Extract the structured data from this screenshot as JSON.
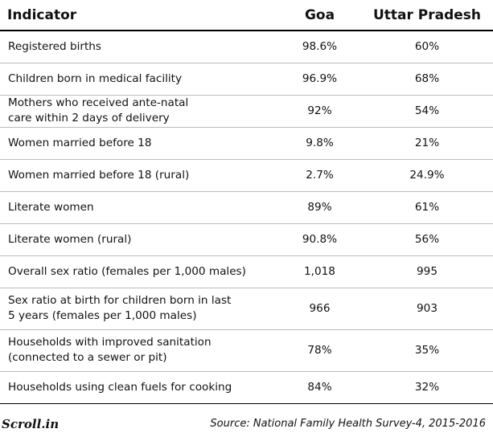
{
  "chart_data": {
    "type": "table",
    "columns": [
      "Indicator",
      "Goa",
      "Uttar Pradesh"
    ],
    "rows": [
      [
        "Registered births",
        "98.6%",
        "60%"
      ],
      [
        "Children born in medical facility",
        "96.9%",
        "68%"
      ],
      [
        "Mothers who received ante-natal care within 2 days of delivery",
        "92%",
        "54%"
      ],
      [
        "Women married before 18",
        "9.8%",
        "21%"
      ],
      [
        "Women married before 18 (rural)",
        "2.7%",
        "24.9%"
      ],
      [
        "Literate women",
        "89%",
        "61%"
      ],
      [
        "Literate women (rural)",
        "90.8%",
        "56%"
      ],
      [
        "Overall sex ratio (females per 1,000 males)",
        "1,018",
        "995"
      ],
      [
        "Sex ratio at birth for children born in last 5 years (females per 1,000 males)",
        "966",
        "903"
      ],
      [
        "Households with improved sanitation (connected to a sewer or pit)",
        "78%",
        "35%"
      ],
      [
        "Households using clean fuels for cooking",
        "84%",
        "32%"
      ]
    ],
    "row_display_lines": [
      [
        "Registered births"
      ],
      [
        "Children born in medical facility"
      ],
      [
        "Mothers who received ante-natal",
        "care within 2 days of delivery"
      ],
      [
        "Women married before 18"
      ],
      [
        "Women married before 18 (rural)"
      ],
      [
        "Literate women"
      ],
      [
        "Literate women (rural)"
      ],
      [
        "Overall sex ratio (females per 1,000 males)"
      ],
      [
        "Sex ratio at birth for children born in last",
        "5 years (females per 1,000 males)"
      ],
      [
        "Households with improved sanitation",
        "(connected to a sewer or pit)"
      ],
      [
        "Households using clean fuels for cooking"
      ]
    ],
    "source": "Source: National Family Health Survey-4, 2015-2016",
    "logo_text": "Scroll.in"
  }
}
